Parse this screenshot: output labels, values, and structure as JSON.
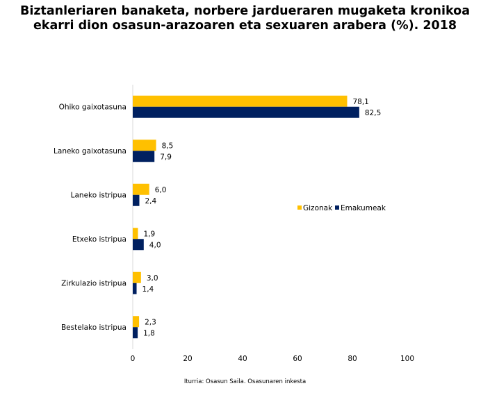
{
  "header": {
    "title_line1": "Biztanleriaren banaketa, norbere jardueraren mugaketa kronikoa",
    "title_line2": "ekarri dion osasun-arazoaren eta sexuaren arabera (%). 2018"
  },
  "footer": {
    "source": "Iturria: Osasun Saila. Osasunaren inkesta"
  },
  "chart_data": {
    "type": "bar",
    "orientation": "horizontal",
    "title": "Biztanleriaren banaketa, norbere jardueraren mugaketa kronikoa ekarri dion osasun-arazoaren eta sexuaren arabera (%). 2018",
    "categories": [
      "Ohiko gaixotasuna",
      "Laneko gaixotasuna",
      "Laneko istripua",
      "Etxeko istripua",
      "Zirkulazio istripua",
      "Bestelako istripua"
    ],
    "series": [
      {
        "name": "Gizonak",
        "color": "#FFC000",
        "values": [
          78.1,
          8.5,
          6.0,
          1.9,
          3.0,
          2.3
        ],
        "labels": [
          "78,1",
          "8,5",
          "6,0",
          "1,9",
          "3,0",
          "2,3"
        ]
      },
      {
        "name": "Emakumeak",
        "color": "#002060",
        "values": [
          82.5,
          7.9,
          2.4,
          4.0,
          1.4,
          1.8
        ],
        "labels": [
          "82,5",
          "7,9",
          "2,4",
          "4,0",
          "1,4",
          "1,8"
        ]
      }
    ],
    "xlim": [
      0,
      100
    ],
    "xticks": [
      0,
      20,
      40,
      60,
      80,
      100
    ],
    "xtick_labels": [
      "0",
      "20",
      "40",
      "60",
      "80",
      "100"
    ],
    "grid": false,
    "legend": "right"
  }
}
